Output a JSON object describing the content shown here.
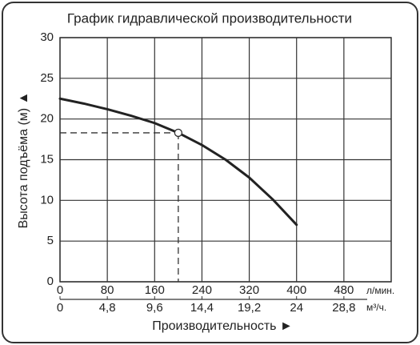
{
  "chart_data": {
    "type": "line",
    "title": "График гидравлической производительности",
    "y_label": "Высота подъёма (м) ▲",
    "x_label": "Производительность ►",
    "x_unit": "л/мин.",
    "x2_unit": "м³/ч.",
    "x": [
      0,
      40,
      80,
      120,
      160,
      200,
      240,
      280,
      320,
      360,
      400
    ],
    "series": [
      {
        "color": "#222222",
        "values": [
          22.5,
          21.9,
          21.2,
          20.4,
          19.5,
          18.3,
          16.8,
          15,
          12.8,
          10.1,
          7
        ]
      }
    ],
    "marker": {
      "x": 200,
      "y": 18.3
    },
    "xlim": [
      0,
      560
    ],
    "xticks": [
      0,
      80,
      160,
      240,
      320,
      400,
      480
    ],
    "x2lim": [
      0,
      33.6
    ],
    "x2ticks": [
      0,
      {
        "value": 4.8,
        "label": "4,8"
      },
      {
        "value": 9.6,
        "label": "9,6"
      },
      {
        "value": 14.4,
        "label": "14,4"
      },
      {
        "value": 19.2,
        "label": "19,2"
      },
      24,
      {
        "value": 28.8,
        "label": "28,8"
      }
    ],
    "ylim": [
      0,
      30
    ],
    "yticks": [
      0,
      5,
      10,
      15,
      20,
      25,
      30
    ],
    "grid": true
  }
}
